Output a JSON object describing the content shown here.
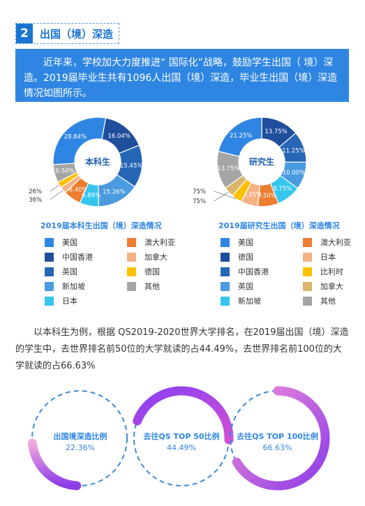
{
  "section": {
    "number": "2",
    "title": "出国（境）深造"
  },
  "intro": "近年来，学校加大力度推进“ 国际化”战略，鼓励学生出国（ 境）深造。2019届毕业生共有1096人出国（境）深造，毕业生出国（境）深造情况如图所示。",
  "chart_data": [
    {
      "type": "pie",
      "variant": "donut",
      "center_label": "本科生",
      "title": "2019届本科生出国（境）深造情况",
      "series": [
        {
          "name": "澳大利亚",
          "value": 6.4,
          "label": "6.40%",
          "color": "#ed7d31"
        },
        {
          "name": "加拿大",
          "value": 2.36,
          "label": "2.36%",
          "color": "#f4b183"
        },
        {
          "name": "德国",
          "value": 2.26,
          "label": "2.26%",
          "color": "#ffc000"
        },
        {
          "name": "其他",
          "value": 6.5,
          "label": "6.50%",
          "color": "#a5a5a5"
        },
        {
          "name": "美国",
          "value": 28.84,
          "label": "28.84%",
          "color": "#2f86e2"
        },
        {
          "name": "中国香港",
          "value": 16.04,
          "label": "16.04%",
          "color": "#1f4e9c"
        },
        {
          "name": "英国",
          "value": 15.45,
          "label": "15.45%",
          "color": "#2566b5"
        },
        {
          "name": "新加坡",
          "value": 15.26,
          "label": "15.26%",
          "color": "#4a9be0"
        },
        {
          "name": "日本",
          "value": 6.89,
          "label": "6.89%",
          "color": "#35c5ee"
        }
      ],
      "legend": [
        {
          "name": "美国",
          "color": "#2f86e2"
        },
        {
          "name": "澳大利亚",
          "color": "#ed7d31"
        },
        {
          "name": "中国香港",
          "color": "#1f4e9c"
        },
        {
          "name": "加拿大",
          "color": "#f4b183"
        },
        {
          "name": "英国",
          "color": "#2566b5"
        },
        {
          "name": "德国",
          "color": "#ffc000"
        },
        {
          "name": "新加坡",
          "color": "#4a9be0"
        },
        {
          "name": "其他",
          "color": "#a5a5a5"
        },
        {
          "name": "日本",
          "color": "#35c5ee"
        }
      ]
    },
    {
      "type": "pie",
      "variant": "donut",
      "center_label": "研究生",
      "title": "2019届研究生出国（境）深造情况",
      "series": [
        {
          "name": "澳大利亚",
          "value": 7.5,
          "label": "7.50%",
          "color": "#ed7d31"
        },
        {
          "name": "日本",
          "value": 6.25,
          "label": "6.25%",
          "color": "#f4b183"
        },
        {
          "name": "比利时",
          "value": 3.75,
          "label": "3.75%",
          "color": "#ffc000"
        },
        {
          "name": "加拿大",
          "value": 3.75,
          "label": "3.75%",
          "color": "#dab56a"
        },
        {
          "name": "其他",
          "value": 13.75,
          "label": "13.75%",
          "color": "#a5a5a5"
        },
        {
          "name": "美国",
          "value": 21.25,
          "label": "21.25%",
          "color": "#2f86e2"
        },
        {
          "name": "德国",
          "value": 13.75,
          "label": "13.75%",
          "color": "#1f4e9c"
        },
        {
          "name": "中国香港",
          "value": 11.25,
          "label": "11.25%",
          "color": "#2566b5"
        },
        {
          "name": "英国",
          "value": 10.0,
          "label": "10.00%",
          "color": "#4a9be0"
        },
        {
          "name": "新加坡",
          "value": 8.75,
          "label": "8.75%",
          "color": "#35c5ee"
        }
      ],
      "legend": [
        {
          "name": "美国",
          "color": "#2f86e2"
        },
        {
          "name": "澳大利亚",
          "color": "#ed7d31"
        },
        {
          "name": "德国",
          "color": "#1f4e9c"
        },
        {
          "name": "日本",
          "color": "#f4b183"
        },
        {
          "name": "中国香港",
          "color": "#2566b5"
        },
        {
          "name": "比利时",
          "color": "#ffc000"
        },
        {
          "name": "英国",
          "color": "#4a9be0"
        },
        {
          "name": "加拿大",
          "color": "#dab56a"
        },
        {
          "name": "新加坡",
          "color": "#35c5ee"
        },
        {
          "name": "其他",
          "color": "#a5a5a5"
        }
      ]
    }
  ],
  "paragraph2": "以本科生为例，根据 QS2019-2020世界大学排名，在2019届出国（境）深造的学生中，去世界排名前50位的大学就读的占44.49%，去世界排名前100位的大学就读的占66.63%",
  "rings": [
    {
      "label": "出国境深造比例",
      "value": "22.36%",
      "fraction": 0.2236
    },
    {
      "label": "去往QS TOP 50比例",
      "value": "44.49%",
      "fraction": 0.4449
    },
    {
      "label": "去往QS TOP 100比例",
      "value": "66.63%",
      "fraction": 0.6663
    }
  ]
}
